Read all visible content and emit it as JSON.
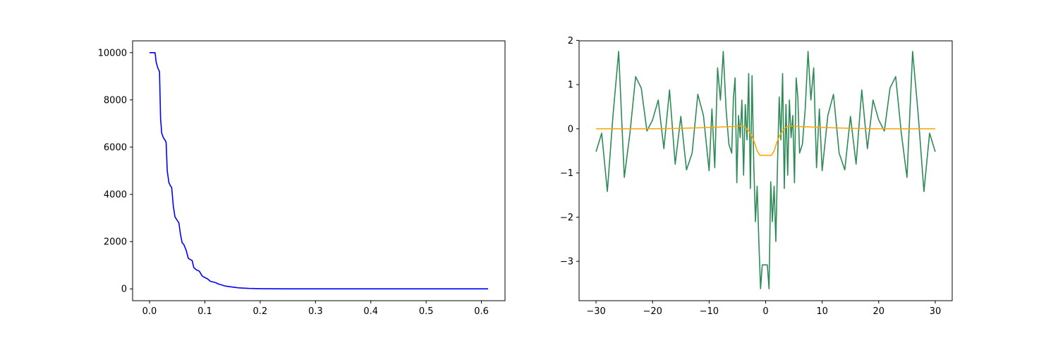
{
  "chart_data": [
    {
      "type": "line",
      "title": "",
      "xlabel": "",
      "ylabel": "",
      "xlim": [
        -0.0306,
        0.6426
      ],
      "ylim": [
        -500,
        10500
      ],
      "xticks": [
        0.0,
        0.1,
        0.2,
        0.3,
        0.4,
        0.5,
        0.6
      ],
      "xtick_labels": [
        "0.0",
        "0.1",
        "0.2",
        "0.3",
        "0.4",
        "0.5",
        "0.6"
      ],
      "yticks": [
        0,
        2000,
        4000,
        6000,
        8000,
        10000
      ],
      "ytick_labels": [
        "0",
        "2000",
        "4000",
        "6000",
        "8000",
        "10000"
      ],
      "grid": false,
      "series": [
        {
          "color": "#0000ff",
          "x": [
            0.0,
            0.01,
            0.012,
            0.015,
            0.018,
            0.02,
            0.022,
            0.025,
            0.028,
            0.03,
            0.032,
            0.035,
            0.038,
            0.04,
            0.043,
            0.046,
            0.05,
            0.053,
            0.056,
            0.059,
            0.062,
            0.066,
            0.07,
            0.073,
            0.077,
            0.08,
            0.085,
            0.09,
            0.095,
            0.1,
            0.105,
            0.11,
            0.115,
            0.12,
            0.125,
            0.13,
            0.135,
            0.14,
            0.15,
            0.16,
            0.17,
            0.18,
            0.2,
            0.22,
            0.25,
            0.3,
            0.35,
            0.4,
            0.5,
            0.612
          ],
          "y": [
            10000,
            10000,
            9600,
            9350,
            9200,
            7200,
            6600,
            6400,
            6300,
            6200,
            5000,
            4500,
            4350,
            4300,
            3500,
            3050,
            2900,
            2800,
            2300,
            1950,
            1880,
            1650,
            1300,
            1250,
            1200,
            900,
            800,
            750,
            550,
            480,
            420,
            320,
            290,
            260,
            200,
            170,
            130,
            110,
            75,
            45,
            30,
            20,
            10,
            5,
            2,
            1,
            0,
            0,
            0,
            0
          ]
        }
      ]
    },
    {
      "type": "line",
      "title": "",
      "xlabel": "",
      "ylabel": "",
      "xlim": [
        -33,
        33
      ],
      "ylim": [
        -3.89,
        1.99
      ],
      "xticks": [
        -30,
        -20,
        -10,
        0,
        10,
        20,
        30
      ],
      "xtick_labels": [
        "−30",
        "−20",
        "−10",
        "0",
        "10",
        "20",
        "30"
      ],
      "yticks": [
        -3,
        -2,
        -1,
        0,
        1,
        2
      ],
      "ytick_labels": [
        "−3",
        "−2",
        "−1",
        "0",
        "1",
        "2"
      ],
      "grid": false,
      "series": [
        {
          "color": "#2e8b57",
          "x": [
            -30,
            -29,
            -28,
            -27,
            -26,
            -25,
            -24,
            -23,
            -22,
            -21,
            -20,
            -19,
            -18,
            -17,
            -16,
            -15,
            -14,
            -13,
            -12,
            -11,
            -10,
            -9.5,
            -9,
            -8.5,
            -8,
            -7.5,
            -7,
            -6.5,
            -6,
            -5.7,
            -5.4,
            -5.1,
            -4.8,
            -4.5,
            -4.2,
            -3.9,
            -3.6,
            -3.3,
            -3.0,
            -2.7,
            -2.4,
            -2.1,
            -1.8,
            -1.5,
            -1.2,
            -0.9,
            -0.6,
            -0.3,
            0.0,
            0.3,
            0.6,
            0.9,
            1.2,
            1.5,
            1.8,
            2.1,
            2.4,
            2.7,
            3.0,
            3.3,
            3.6,
            3.9,
            4.2,
            4.5,
            4.8,
            5.1,
            5.4,
            5.7,
            6.0,
            6.5,
            7.0,
            7.5,
            8.0,
            8.5,
            9.0,
            9.5,
            10,
            11,
            12,
            13,
            14,
            15,
            16,
            17,
            18,
            19,
            20,
            21,
            22,
            23,
            24,
            25,
            26,
            27,
            28,
            29,
            30
          ],
          "y": [
            -0.52,
            -0.1,
            -1.42,
            0.3,
            1.75,
            -1.1,
            -0.1,
            1.18,
            0.92,
            -0.05,
            0.2,
            0.65,
            -0.45,
            0.88,
            -0.8,
            0.28,
            -0.93,
            -0.55,
            0.78,
            0.3,
            -0.95,
            0.45,
            -0.88,
            1.38,
            0.65,
            1.75,
            0.45,
            -0.35,
            -0.55,
            0.7,
            1.15,
            -1.22,
            0.3,
            -0.2,
            0.65,
            -1.05,
            0.55,
            -0.25,
            1.25,
            -1.35,
            1.2,
            -0.8,
            -2.1,
            -1.3,
            -2.55,
            -3.62,
            -3.08,
            -3.08,
            -3.08,
            -3.08,
            -3.62,
            -1.2,
            -2.1,
            -1.3,
            -2.55,
            -0.8,
            0.72,
            -0.25,
            1.25,
            -1.35,
            0.55,
            -1.05,
            0.65,
            -0.2,
            0.3,
            -1.22,
            1.15,
            0.7,
            -0.55,
            -0.35,
            0.45,
            1.75,
            0.65,
            1.38,
            -0.88,
            0.45,
            -0.95,
            0.3,
            0.78,
            -0.55,
            -0.93,
            0.28,
            -0.8,
            0.88,
            -0.45,
            0.65,
            0.2,
            -0.05,
            0.92,
            1.18,
            -0.1,
            -1.1,
            1.75,
            0.3,
            -1.42,
            -0.1,
            -0.52
          ]
        },
        {
          "color": "#ffa500",
          "x": [
            -30,
            -25,
            -20,
            -15,
            -10,
            -8,
            -6,
            -5,
            -4,
            -3.5,
            -3,
            -2.5,
            -2,
            -1.5,
            -1,
            0,
            1,
            1.5,
            2,
            2.5,
            3,
            3.5,
            4,
            5,
            6,
            8,
            10,
            15,
            20,
            25,
            30
          ],
          "y": [
            0,
            0,
            0,
            0.01,
            0.03,
            0.04,
            0.05,
            0.06,
            0.06,
            0.02,
            -0.05,
            -0.15,
            -0.3,
            -0.5,
            -0.6,
            -0.6,
            -0.6,
            -0.5,
            -0.3,
            -0.15,
            -0.05,
            0.02,
            0.06,
            0.06,
            0.05,
            0.04,
            0.03,
            0.01,
            0,
            0,
            0
          ]
        }
      ]
    }
  ]
}
